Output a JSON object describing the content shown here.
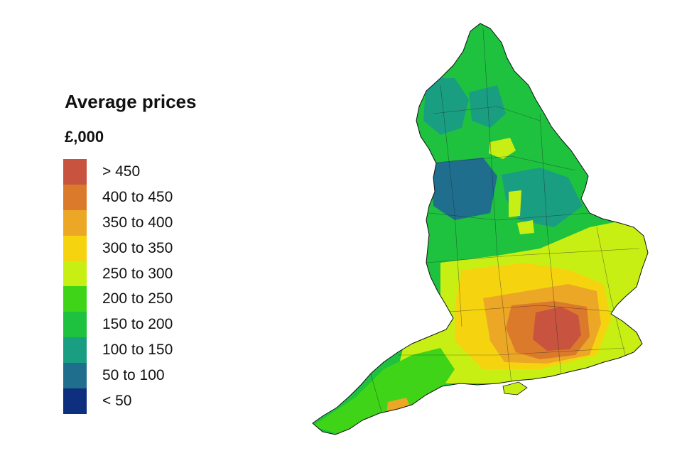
{
  "legend": {
    "title": "Average prices",
    "unit": "£,000",
    "items": [
      {
        "label": "> 450",
        "color": "#c8543f"
      },
      {
        "label": "400 to 450",
        "color": "#dc7a2c"
      },
      {
        "label": "350 to 400",
        "color": "#eba725"
      },
      {
        "label": "300 to 350",
        "color": "#f5d40f"
      },
      {
        "label": "250 to 300",
        "color": "#c8ef14"
      },
      {
        "label": "200 to 250",
        "color": "#3fd417"
      },
      {
        "label": "150 to 200",
        "color": "#1ec23f"
      },
      {
        "label": "100 to 150",
        "color": "#1a9e82"
      },
      {
        "label": "50 to 100",
        "color": "#1f6e8e"
      },
      {
        "label": "< 50",
        "color": "#0e2f7e"
      }
    ]
  },
  "map": {
    "region": "England",
    "regions_shaded": [
      {
        "area": "north-east",
        "band": "100 to 150"
      },
      {
        "area": "north",
        "band": "150 to 200"
      },
      {
        "area": "yorkshire",
        "band": "150 to 200"
      },
      {
        "area": "north-west-urban",
        "band": "50 to 100"
      },
      {
        "area": "midlands",
        "band": "200 to 250"
      },
      {
        "area": "east",
        "band": "250 to 300"
      },
      {
        "area": "south",
        "band": "300 to 350"
      },
      {
        "area": "home-counties",
        "band": "400 to 450"
      },
      {
        "area": "london",
        "band": "> 450"
      },
      {
        "area": "south-west",
        "band": "200 to 250"
      }
    ]
  }
}
